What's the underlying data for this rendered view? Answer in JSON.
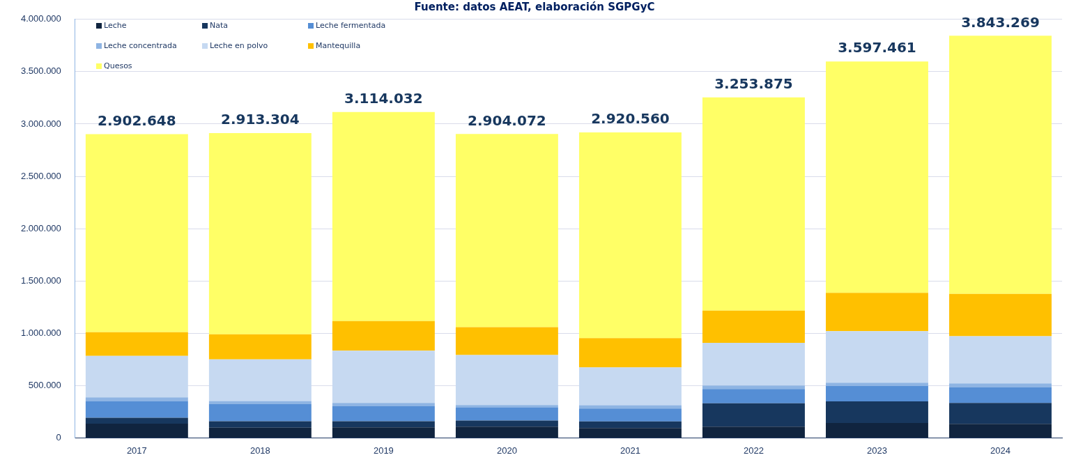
{
  "chart_data": {
    "type": "bar",
    "stacked": true,
    "title": "Fuente: datos AEAT, elaboración SGPGyC",
    "categories": [
      "2017",
      "2018",
      "2019",
      "2020",
      "2021",
      "2022",
      "2023",
      "2024"
    ],
    "series": [
      {
        "name": "Leche",
        "color": "#10243f",
        "values": [
          136000,
          98000,
          101000,
          107000,
          95000,
          107000,
          143000,
          134000
        ]
      },
      {
        "name": "Nata",
        "color": "#17375e",
        "values": [
          57000,
          62000,
          59000,
          59000,
          63000,
          224000,
          206000,
          200000
        ]
      },
      {
        "name": "Leche fermentada",
        "color": "#558ed5",
        "values": [
          159000,
          163000,
          142000,
          127000,
          122000,
          137000,
          146000,
          149000
        ]
      },
      {
        "name": "Leche concentrada",
        "color": "#8eb4e3",
        "values": [
          36000,
          29000,
          32000,
          21000,
          33000,
          33000,
          32000,
          38000
        ]
      },
      {
        "name": "Leche en polvo",
        "color": "#c6d9f1",
        "values": [
          395000,
          399000,
          499000,
          478000,
          360000,
          408000,
          493000,
          450000
        ]
      },
      {
        "name": "Mantequilla",
        "color": "#ffc000",
        "values": [
          227000,
          239000,
          284000,
          266000,
          281000,
          307000,
          366000,
          406000
        ]
      },
      {
        "name": "Quesos",
        "color": "#ffff66",
        "values": [
          1892648,
          1923304,
          1997032,
          1846072,
          1966560,
          2037875,
          2211461,
          2466269
        ]
      }
    ],
    "totals": [
      "2.902.648",
      "2.913.304",
      "3.114.032",
      "2.904.072",
      "2.920.560",
      "3.253.875",
      "3.597.461",
      "3.843.269"
    ],
    "ylim": [
      0,
      4000000
    ],
    "yticks": [
      {
        "value": 0,
        "label": "0"
      },
      {
        "value": 500000,
        "label": "500.000"
      },
      {
        "value": 1000000,
        "label": "1.000.000"
      },
      {
        "value": 1500000,
        "label": "1.500.000"
      },
      {
        "value": 2000000,
        "label": "2.000.000"
      },
      {
        "value": 2500000,
        "label": "2.500.000"
      },
      {
        "value": 3000000,
        "label": "3.000.000"
      },
      {
        "value": 3500000,
        "label": "3.500.000"
      },
      {
        "value": 4000000,
        "label": "4.000.000"
      }
    ],
    "grid": "y",
    "legend": "top left"
  }
}
